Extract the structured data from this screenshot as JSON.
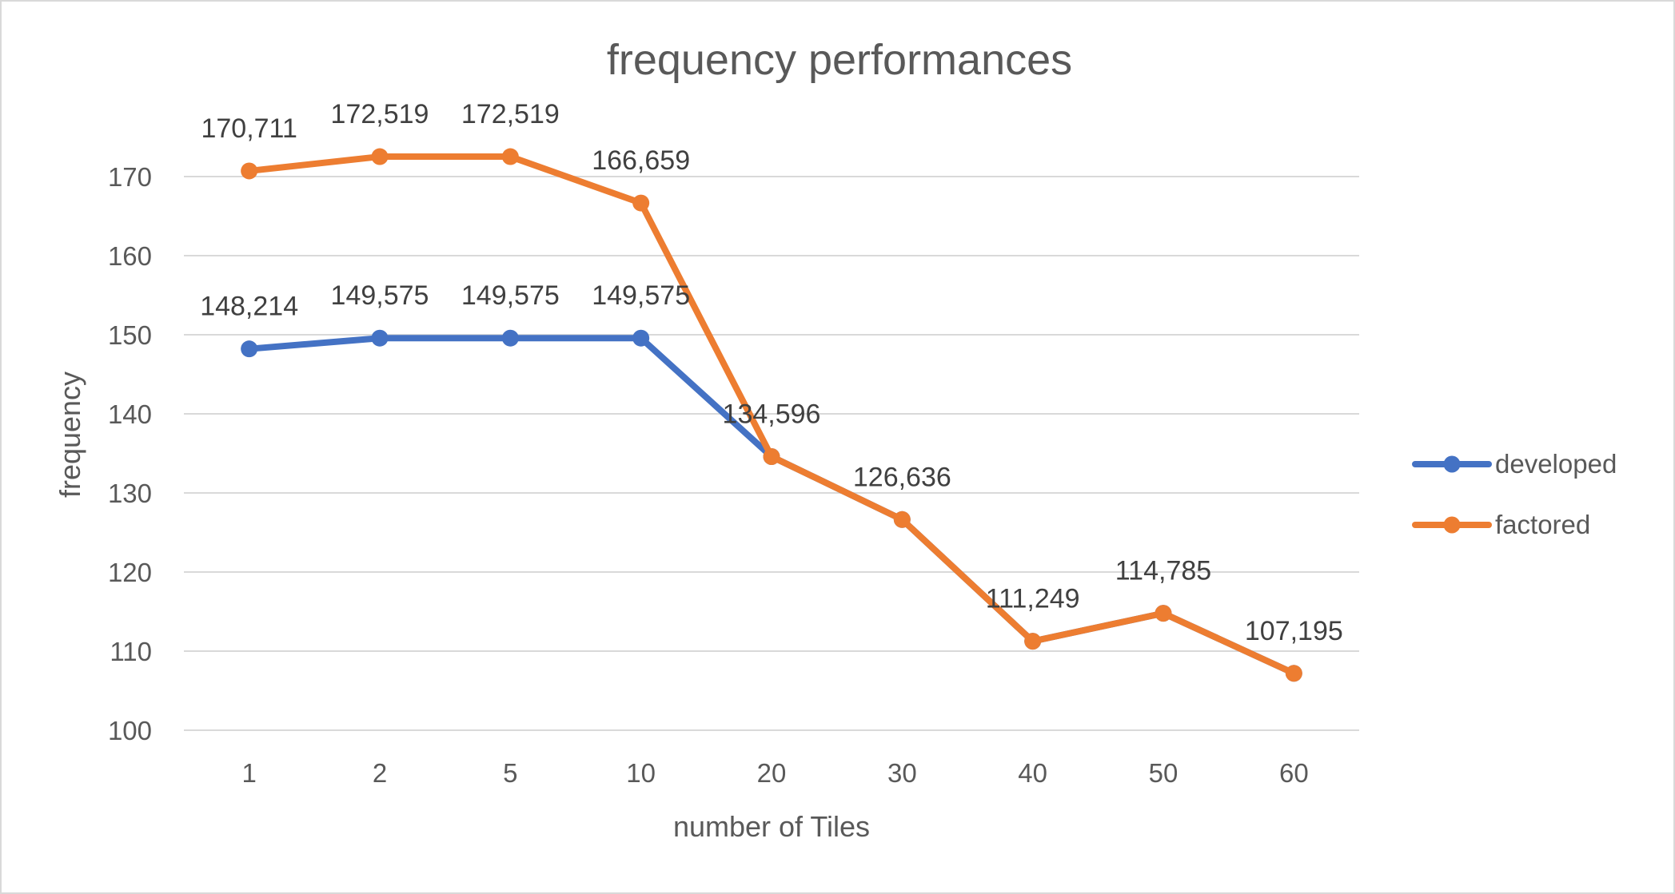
{
  "chart_data": {
    "type": "line",
    "title": "frequency performances",
    "xlabel": "number of Tiles",
    "ylabel": "frequency",
    "categories": [
      "1",
      "2",
      "5",
      "10",
      "20",
      "30",
      "40",
      "50",
      "60"
    ],
    "ylim": [
      100,
      170
    ],
    "yticks": [
      "100",
      "110",
      "120",
      "130",
      "140",
      "150",
      "160",
      "170"
    ],
    "grid": true,
    "legend_position": "right",
    "series": [
      {
        "name": "developed",
        "color": "#4472C4",
        "values": [
          148.214,
          149.575,
          149.575,
          149.575,
          134.596,
          126.636,
          111.249,
          114.785,
          107.195
        ],
        "labels": [
          "148,214",
          "149,575",
          "149,575",
          "149,575",
          "",
          "",
          "",
          "",
          ""
        ]
      },
      {
        "name": "factored",
        "color": "#ED7D31",
        "values": [
          170.711,
          172.519,
          172.519,
          166.659,
          134.596,
          126.636,
          111.249,
          114.785,
          107.195
        ],
        "labels": [
          "170,711",
          "172,519",
          "172,519",
          "166,659",
          "134,596",
          "126,636",
          "111,249",
          "114,785",
          "107,195"
        ]
      }
    ]
  }
}
